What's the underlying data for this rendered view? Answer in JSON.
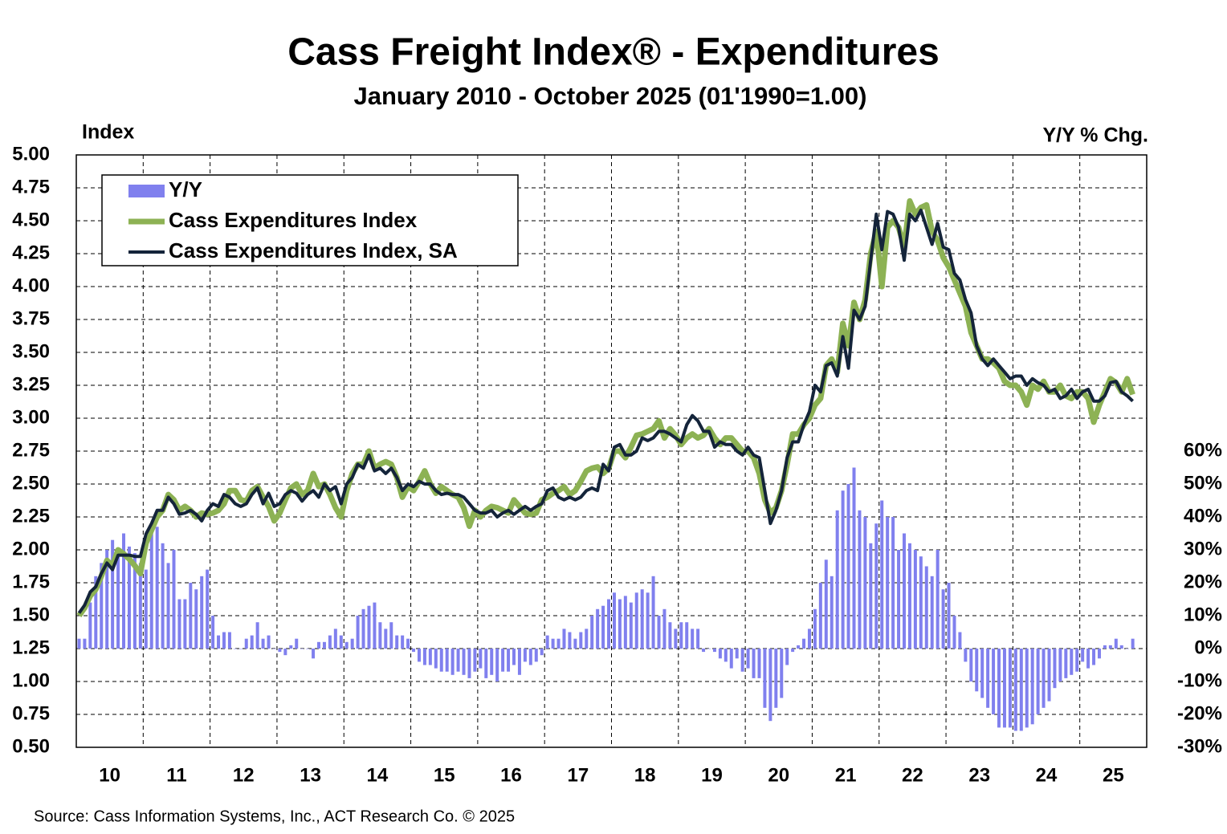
{
  "chart_data": {
    "type": "combo",
    "title": "Cass Freight Index® - Expenditures",
    "subtitle": "January 2010 - October 2025 (01'1990=1.00)",
    "y_label": "Index",
    "y2_label": "Y/Y % Chg.",
    "source": "Source: Cass Information Systems, Inc., ACT Research Co. © 2025",
    "grid": true,
    "legend": "top-left",
    "categories": [
      "10",
      null,
      null,
      null,
      null,
      null,
      null,
      null,
      null,
      null,
      null,
      null,
      "11",
      null,
      null,
      null,
      null,
      null,
      null,
      null,
      null,
      null,
      null,
      null,
      "12",
      null,
      null,
      null,
      null,
      null,
      null,
      null,
      null,
      null,
      null,
      null,
      "13",
      null,
      null,
      null,
      null,
      null,
      null,
      null,
      null,
      null,
      null,
      null,
      "14",
      null,
      null,
      null,
      null,
      null,
      null,
      null,
      null,
      null,
      null,
      null,
      "15",
      null,
      null,
      null,
      null,
      null,
      null,
      null,
      null,
      null,
      null,
      null,
      "16",
      null,
      null,
      null,
      null,
      null,
      null,
      null,
      null,
      null,
      null,
      null,
      "17",
      null,
      null,
      null,
      null,
      null,
      null,
      null,
      null,
      null,
      null,
      null,
      "18",
      null,
      null,
      null,
      null,
      null,
      null,
      null,
      null,
      null,
      null,
      null,
      "19",
      null,
      null,
      null,
      null,
      null,
      null,
      null,
      null,
      null,
      null,
      null,
      "20",
      null,
      null,
      null,
      null,
      null,
      null,
      null,
      null,
      null,
      null,
      null,
      "21",
      null,
      null,
      null,
      null,
      null,
      null,
      null,
      null,
      null,
      null,
      null,
      "22",
      null,
      null,
      null,
      null,
      null,
      null,
      null,
      null,
      null,
      null,
      null,
      "23",
      null,
      null,
      null,
      null,
      null,
      null,
      null,
      null,
      null,
      null,
      null,
      "24",
      null,
      null,
      null,
      null,
      null,
      null,
      null,
      null,
      null,
      null,
      null,
      "25",
      null,
      null,
      null,
      null,
      null,
      null,
      null,
      null,
      null
    ],
    "ylim": [
      0.5,
      5.0
    ],
    "yticks": [
      {
        "value": 0.5,
        "label": "0.50"
      },
      {
        "value": 0.75,
        "label": "0.75"
      },
      {
        "value": 1.0,
        "label": "1.00"
      },
      {
        "value": 1.25,
        "label": "1.25"
      },
      {
        "value": 1.5,
        "label": "1.50"
      },
      {
        "value": 1.75,
        "label": "1.75"
      },
      {
        "value": 2.0,
        "label": "2.00"
      },
      {
        "value": 2.25,
        "label": "2.25"
      },
      {
        "value": 2.5,
        "label": "2.50"
      },
      {
        "value": 2.75,
        "label": "2.75"
      },
      {
        "value": 3.0,
        "label": "3.00"
      },
      {
        "value": 3.25,
        "label": "3.25"
      },
      {
        "value": 3.5,
        "label": "3.50"
      },
      {
        "value": 3.75,
        "label": "3.75"
      },
      {
        "value": 4.0,
        "label": "4.00"
      },
      {
        "value": 4.25,
        "label": "4.25"
      },
      {
        "value": 4.5,
        "label": "4.50"
      },
      {
        "value": 4.75,
        "label": "4.75"
      },
      {
        "value": 5.0,
        "label": "5.00"
      }
    ],
    "y2lim": [
      -30,
      150
    ],
    "y2ticks": [
      {
        "value": -30,
        "label": "-30%"
      },
      {
        "value": -20,
        "label": "-20%"
      },
      {
        "value": -10,
        "label": "-10%"
      },
      {
        "value": 0,
        "label": "0%"
      },
      {
        "value": 10,
        "label": "10%"
      },
      {
        "value": 20,
        "label": "20%"
      },
      {
        "value": 30,
        "label": "30%"
      },
      {
        "value": 40,
        "label": "40%"
      },
      {
        "value": 50,
        "label": "50%"
      },
      {
        "value": 60,
        "label": "60%"
      }
    ],
    "series": [
      {
        "name": "Y/Y",
        "type": "bar",
        "axis": "y2",
        "color": "#8080ee",
        "values": [
          3,
          3,
          14,
          22,
          26,
          30,
          33,
          30,
          35,
          31,
          29,
          26,
          24,
          35,
          37,
          32,
          26,
          30,
          15,
          15,
          20,
          18,
          22,
          24,
          10,
          4,
          5,
          5,
          0,
          0,
          3,
          4,
          8,
          3,
          4,
          0,
          -1,
          -2,
          1,
          3,
          0,
          0,
          -3,
          2,
          2,
          4,
          6,
          4,
          2,
          3,
          10,
          12,
          13,
          14,
          8,
          6,
          8,
          4,
          4,
          3,
          -1,
          -4,
          -5,
          -5,
          -6,
          -7,
          -7,
          -8,
          -7,
          -8,
          -9,
          -7,
          -6,
          -9,
          -8,
          -10,
          -7,
          -7,
          -5,
          -8,
          -4,
          -5,
          -4,
          -2,
          4,
          3,
          3,
          6,
          5,
          3,
          5,
          6,
          10,
          12,
          13,
          15,
          17,
          15,
          16,
          14,
          17,
          18,
          17,
          22,
          10,
          12,
          8,
          6,
          8,
          8,
          6,
          6,
          -1,
          0,
          -1,
          -3,
          -4,
          -6,
          -3,
          -7,
          -6,
          -9,
          -9,
          -18,
          -22,
          -18,
          -15,
          -5,
          -1,
          1,
          3,
          6,
          12,
          20,
          27,
          22,
          42,
          48,
          50,
          55,
          42,
          40,
          32,
          38,
          45,
          40,
          40,
          30,
          35,
          32,
          30,
          28,
          25,
          22,
          30,
          18,
          20,
          10,
          5,
          -4,
          -10,
          -13,
          -15,
          -18,
          -20,
          -24,
          -24,
          -24,
          -25,
          -25,
          -24,
          -23,
          -20,
          -18,
          -16,
          -12,
          -10,
          -9,
          -8,
          -7,
          -4,
          -6,
          -5,
          -3,
          1,
          1,
          3,
          1,
          0,
          3
        ]
      },
      {
        "name": "Cass Expenditures Index",
        "type": "line",
        "color": "#8db254",
        "values": [
          1.5,
          1.56,
          1.65,
          1.7,
          1.8,
          1.92,
          1.88,
          2.0,
          1.97,
          1.93,
          1.88,
          1.82,
          2.05,
          2.15,
          2.25,
          2.3,
          2.42,
          2.38,
          2.3,
          2.33,
          2.3,
          2.25,
          2.28,
          2.27,
          2.28,
          2.3,
          2.35,
          2.45,
          2.45,
          2.38,
          2.37,
          2.45,
          2.48,
          2.4,
          2.33,
          2.22,
          2.28,
          2.38,
          2.47,
          2.5,
          2.42,
          2.45,
          2.58,
          2.48,
          2.5,
          2.42,
          2.32,
          2.25,
          2.45,
          2.58,
          2.65,
          2.65,
          2.75,
          2.62,
          2.65,
          2.67,
          2.65,
          2.55,
          2.4,
          2.48,
          2.45,
          2.52,
          2.6,
          2.5,
          2.43,
          2.48,
          2.45,
          2.42,
          2.4,
          2.32,
          2.18,
          2.3,
          2.25,
          2.3,
          2.33,
          2.32,
          2.3,
          2.28,
          2.38,
          2.33,
          2.28,
          2.27,
          2.28,
          2.38,
          2.4,
          2.43,
          2.45,
          2.48,
          2.42,
          2.45,
          2.52,
          2.6,
          2.62,
          2.63,
          2.58,
          2.62,
          2.75,
          2.75,
          2.7,
          2.78,
          2.87,
          2.88,
          2.9,
          2.92,
          2.98,
          2.85,
          2.92,
          2.87,
          2.8,
          2.85,
          2.88,
          2.85,
          2.87,
          2.92,
          2.85,
          2.8,
          2.85,
          2.85,
          2.8,
          2.75,
          2.75,
          2.7,
          2.58,
          2.38,
          2.28,
          2.32,
          2.45,
          2.65,
          2.88,
          2.88,
          2.95,
          3.0,
          3.1,
          3.15,
          3.4,
          3.45,
          3.35,
          3.72,
          3.55,
          3.88,
          3.75,
          3.9,
          4.25,
          4.42,
          4.0,
          4.45,
          4.5,
          4.45,
          4.3,
          4.65,
          4.55,
          4.6,
          4.62,
          4.42,
          4.35,
          4.22,
          4.15,
          4.05,
          3.95,
          3.85,
          3.65,
          3.55,
          3.45,
          3.45,
          3.42,
          3.38,
          3.28,
          3.25,
          3.25,
          3.2,
          3.1,
          3.25,
          3.22,
          3.28,
          3.2,
          3.2,
          3.25,
          3.17,
          3.15,
          3.2,
          3.2,
          3.15,
          2.97,
          3.1,
          3.2,
          3.3,
          3.27,
          3.2,
          3.3,
          3.18
        ]
      },
      {
        "name": "Cass Expenditures Index, SA",
        "type": "line",
        "color": "#14243a",
        "values": [
          1.52,
          1.58,
          1.68,
          1.72,
          1.82,
          1.9,
          1.85,
          1.96,
          1.96,
          1.96,
          1.95,
          1.95,
          2.12,
          2.2,
          2.3,
          2.3,
          2.4,
          2.35,
          2.27,
          2.28,
          2.3,
          2.27,
          2.22,
          2.3,
          2.35,
          2.33,
          2.42,
          2.4,
          2.35,
          2.33,
          2.35,
          2.42,
          2.47,
          2.35,
          2.43,
          2.33,
          2.35,
          2.42,
          2.45,
          2.43,
          2.37,
          2.42,
          2.45,
          2.4,
          2.5,
          2.45,
          2.48,
          2.35,
          2.5,
          2.55,
          2.65,
          2.62,
          2.72,
          2.6,
          2.62,
          2.58,
          2.62,
          2.55,
          2.45,
          2.5,
          2.48,
          2.52,
          2.5,
          2.5,
          2.45,
          2.42,
          2.43,
          2.42,
          2.42,
          2.4,
          2.35,
          2.3,
          2.28,
          2.28,
          2.3,
          2.25,
          2.28,
          2.3,
          2.27,
          2.3,
          2.33,
          2.3,
          2.33,
          2.35,
          2.45,
          2.47,
          2.4,
          2.38,
          2.4,
          2.38,
          2.4,
          2.45,
          2.47,
          2.45,
          2.65,
          2.6,
          2.78,
          2.8,
          2.72,
          2.72,
          2.75,
          2.85,
          2.83,
          2.85,
          2.9,
          2.9,
          2.88,
          2.85,
          2.82,
          2.95,
          3.02,
          2.98,
          2.9,
          2.9,
          2.78,
          2.82,
          2.8,
          2.8,
          2.75,
          2.72,
          2.78,
          2.72,
          2.7,
          2.45,
          2.2,
          2.3,
          2.45,
          2.7,
          2.82,
          2.82,
          2.95,
          3.05,
          3.25,
          3.2,
          3.4,
          3.42,
          3.32,
          3.62,
          3.38,
          3.82,
          3.75,
          3.85,
          4.2,
          4.55,
          4.28,
          4.57,
          4.55,
          4.45,
          4.2,
          4.55,
          4.5,
          4.58,
          4.45,
          4.32,
          4.48,
          4.3,
          4.28,
          4.1,
          4.05,
          3.9,
          3.8,
          3.55,
          3.45,
          3.4,
          3.45,
          3.4,
          3.35,
          3.3,
          3.32,
          3.32,
          3.25,
          3.3,
          3.27,
          3.25,
          3.2,
          3.22,
          3.15,
          3.17,
          3.22,
          3.15,
          3.2,
          3.22,
          3.13,
          3.13,
          3.17,
          3.27,
          3.28,
          3.2,
          3.17,
          3.13
        ]
      }
    ]
  }
}
